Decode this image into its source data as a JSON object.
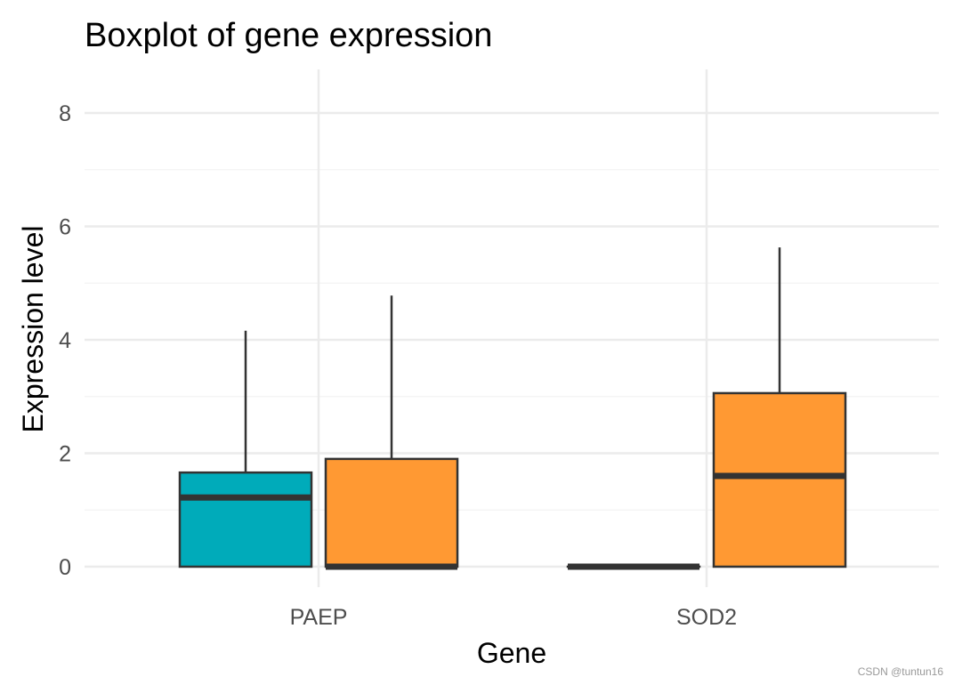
{
  "chart_data": {
    "type": "boxplot",
    "title": "Boxplot of gene expression",
    "xlabel": "Gene",
    "ylabel": "Expression level",
    "categories": [
      "PAEP",
      "SOD2"
    ],
    "ylim": [
      0,
      8.8
    ],
    "yticks": [
      0,
      2,
      4,
      6,
      8
    ],
    "grid": true,
    "legend": "none",
    "series": [
      {
        "color": "#00ABBA",
        "boxes": [
          {
            "min": 0,
            "q1": 0,
            "median": 1.22,
            "q3": 1.66,
            "max": 4.16
          },
          {
            "min": 0,
            "q1": 0,
            "median": 0,
            "q3": 0,
            "max": 0
          }
        ]
      },
      {
        "color": "#FF9933",
        "boxes": [
          {
            "min": 0,
            "q1": 0,
            "median": 0,
            "q3": 1.9,
            "max": 4.78
          },
          {
            "min": 0,
            "q1": 0,
            "median": 1.6,
            "q3": 3.06,
            "max": 5.63
          }
        ]
      }
    ]
  },
  "watermark": "CSDN @tuntun16"
}
